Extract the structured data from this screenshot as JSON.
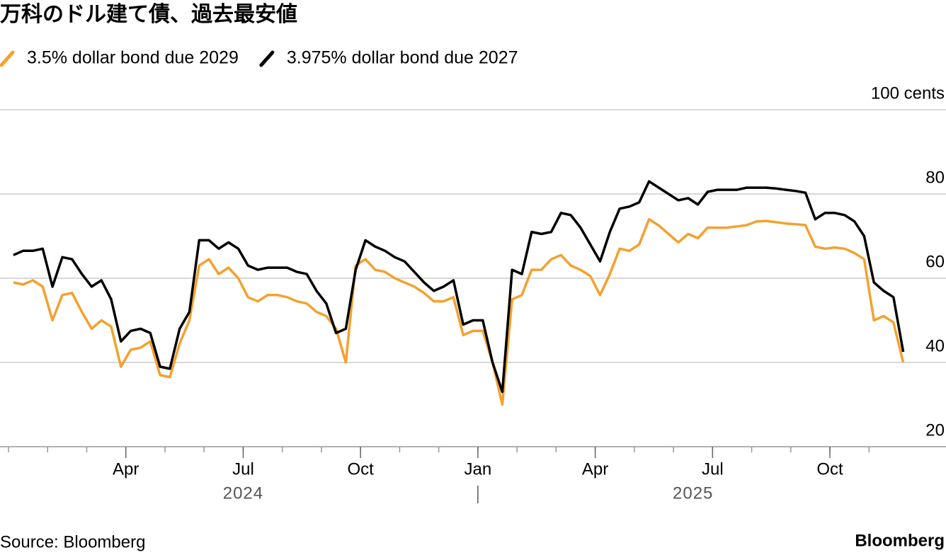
{
  "chart_data": {
    "type": "line",
    "title": "万科のドル建て債、過去最安値",
    "source": "Source: Bloomberg",
    "brand": "Bloomberg",
    "x": [
      "2024-01",
      "2024-01",
      "2024-01",
      "2024-01",
      "2024-02",
      "2024-02",
      "2024-02",
      "2024-02",
      "2024-03",
      "2024-03",
      "2024-03",
      "2024-03",
      "2024-04",
      "2024-04",
      "2024-04",
      "2024-04",
      "2024-05",
      "2024-05",
      "2024-05",
      "2024-05",
      "2024-06",
      "2024-06",
      "2024-06",
      "2024-06",
      "2024-07",
      "2024-07",
      "2024-07",
      "2024-07",
      "2024-08",
      "2024-08",
      "2024-08",
      "2024-08",
      "2024-09",
      "2024-09",
      "2024-09",
      "2024-09",
      "2024-10",
      "2024-10",
      "2024-10",
      "2024-10",
      "2024-11",
      "2024-11",
      "2024-11",
      "2024-11",
      "2024-12",
      "2024-12",
      "2024-12",
      "2024-12",
      "2025-01",
      "2025-01",
      "2025-01",
      "2025-01",
      "2025-02",
      "2025-02",
      "2025-02",
      "2025-02",
      "2025-03",
      "2025-03",
      "2025-03",
      "2025-03",
      "2025-04",
      "2025-04",
      "2025-04",
      "2025-04",
      "2025-05",
      "2025-05",
      "2025-05",
      "2025-05",
      "2025-06",
      "2025-06",
      "2025-06",
      "2025-06",
      "2025-07",
      "2025-07",
      "2025-07",
      "2025-07",
      "2025-08",
      "2025-08",
      "2025-08",
      "2025-08",
      "2025-09",
      "2025-09",
      "2025-09",
      "2025-09",
      "2025-10",
      "2025-10",
      "2025-10",
      "2025-10",
      "2025-11",
      "2025-11",
      "2025-11",
      "2025-11"
    ],
    "x_groups": [
      "2024",
      "2025"
    ],
    "series": [
      {
        "name": "3.5% dollar bond due 2029",
        "color": "#f4a12e",
        "values": [
          59,
          58.5,
          59.5,
          58,
          50,
          56,
          56.5,
          52,
          48,
          50,
          48.5,
          39,
          43,
          43.5,
          45,
          37,
          36.5,
          44.5,
          50,
          63,
          64.5,
          61,
          62.5,
          60,
          55.5,
          54.5,
          56,
          56,
          55.5,
          54.5,
          54,
          52,
          51,
          48,
          40,
          63,
          64.5,
          62,
          61.5,
          60,
          59,
          58,
          56.5,
          54.5,
          54.5,
          55.5,
          46.5,
          47.5,
          47.5,
          40,
          30,
          55,
          56,
          62,
          62,
          64.5,
          65.5,
          63,
          62,
          60.5,
          56,
          61,
          67,
          66.5,
          68,
          74,
          72.5,
          70.5,
          68.5,
          70.5,
          69.5,
          72,
          72,
          72,
          72.3,
          72.6,
          73.5,
          73.6,
          73.3,
          73,
          72.8,
          72.6,
          67.5,
          67,
          67.3,
          67,
          66,
          64.5,
          50,
          51,
          49.5,
          40
        ]
      },
      {
        "name": "3.975% dollar bond due 2027",
        "color": "#000000",
        "values": [
          65.5,
          66.5,
          66.5,
          67,
          58,
          65,
          64.5,
          61,
          58,
          59.5,
          55,
          45,
          47.5,
          48,
          47,
          39,
          38.5,
          48,
          52,
          69,
          69,
          67,
          68.5,
          67,
          63,
          62,
          62.5,
          62.5,
          62.5,
          61.5,
          61,
          57,
          54,
          47,
          48,
          62,
          69,
          67.5,
          66.5,
          65,
          64,
          61.5,
          59,
          57,
          58,
          59.5,
          49,
          50,
          50,
          40,
          33,
          62,
          61,
          71,
          70.5,
          71,
          75.5,
          75,
          72,
          68,
          64,
          71,
          76.5,
          77,
          78,
          83,
          81.5,
          80,
          78.5,
          79,
          77.5,
          80.5,
          81,
          81,
          81,
          81.5,
          81.5,
          81.5,
          81.3,
          81,
          80.7,
          80.3,
          74,
          75.5,
          75.5,
          75,
          73.5,
          70,
          59,
          57,
          55.5,
          42.5
        ]
      }
    ],
    "xticks": [
      {
        "value": "2024-04",
        "label": "Apr"
      },
      {
        "value": "2024-07",
        "label": "Jul"
      },
      {
        "value": "2024-10",
        "label": "Oct"
      },
      {
        "value": "2025-01",
        "label": "Jan"
      },
      {
        "value": "2025-04",
        "label": "Apr"
      },
      {
        "value": "2025-07",
        "label": "Jul"
      },
      {
        "value": "2025-10",
        "label": "Oct"
      }
    ],
    "ylim": [
      20,
      100
    ],
    "yticks": [
      20,
      40,
      60,
      80,
      {
        "value": 100,
        "label": "100 cents"
      }
    ],
    "grid": true
  }
}
